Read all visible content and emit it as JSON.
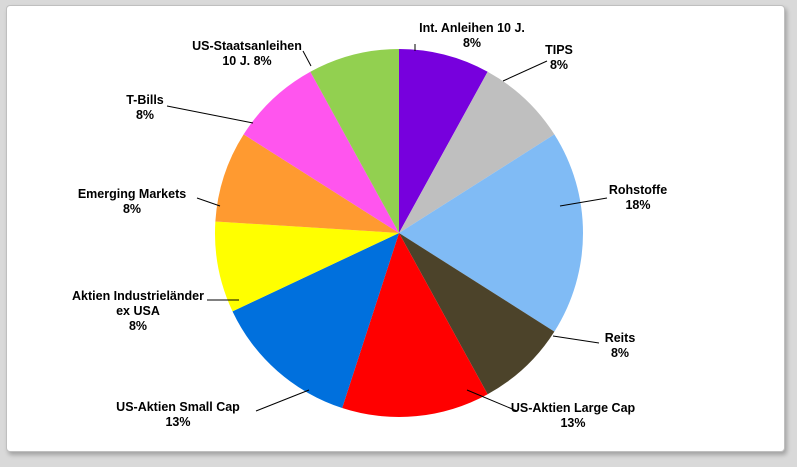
{
  "chart_data": {
    "type": "pie",
    "title": "",
    "start": "12 o'clock",
    "direction": "clockwise",
    "slices": [
      {
        "label_lines": [
          "Int. Anleihen 10 J."
        ],
        "value_label": "8%",
        "value": 8,
        "color": "#7700dd"
      },
      {
        "label_lines": [
          "TIPS"
        ],
        "value_label": "8%",
        "value": 8,
        "color": "#bfbfbf"
      },
      {
        "label_lines": [
          "Rohstoffe"
        ],
        "value_label": "18%",
        "value": 18,
        "color": "#80bbf5"
      },
      {
        "label_lines": [
          "Reits"
        ],
        "value_label": "8%",
        "value": 8,
        "color": "#4c432a"
      },
      {
        "label_lines": [
          "US-Aktien Large Cap"
        ],
        "value_label": "13%",
        "value": 13,
        "color": "#ff0000"
      },
      {
        "label_lines": [
          "US-Aktien Small Cap"
        ],
        "value_label": "13%",
        "value": 13,
        "color": "#0070dd"
      },
      {
        "label_lines": [
          "Aktien Industrieländer",
          "ex USA"
        ],
        "value_label": "8%",
        "value": 8,
        "color": "#ffff00"
      },
      {
        "label_lines": [
          "Emerging Markets"
        ],
        "value_label": "8%",
        "value": 8,
        "color": "#ff9a30"
      },
      {
        "label_lines": [
          "T-Bills"
        ],
        "value_label": "8%",
        "value": 8,
        "color": "#ff55ee"
      },
      {
        "label_lines": [
          "US-Staatsanleihen",
          "10 J. 8%"
        ],
        "value_label": "",
        "value": 8,
        "color": "#92d050"
      }
    ]
  }
}
